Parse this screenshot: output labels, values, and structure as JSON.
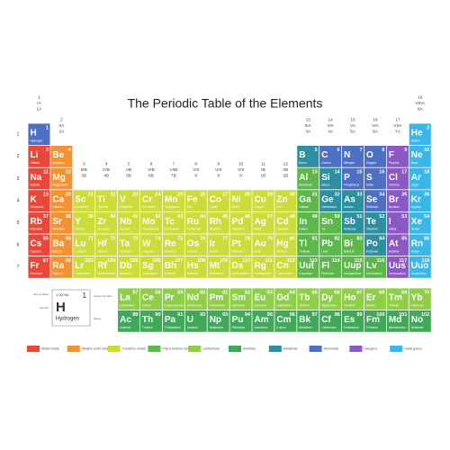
{
  "title": "The Periodic Table of the Elements",
  "periods": [
    "1",
    "2",
    "3",
    "4",
    "5",
    "6",
    "7"
  ],
  "groups": [
    [
      "1",
      "IA",
      "1A"
    ],
    [
      "2",
      "IIA",
      "2A"
    ],
    [
      "3",
      "IIIB",
      "3B"
    ],
    [
      "4",
      "IVB",
      "4B"
    ],
    [
      "5",
      "VB",
      "5B"
    ],
    [
      "6",
      "VIB",
      "6B"
    ],
    [
      "7",
      "VIIB",
      "7B"
    ],
    [
      "8",
      "VIII",
      "8"
    ],
    [
      "9",
      "VIII",
      "8"
    ],
    [
      "10",
      "VIII",
      "8"
    ],
    [
      "11",
      "IB",
      "1B"
    ],
    [
      "12",
      "IIB",
      "2B"
    ],
    [
      "13",
      "IIIA",
      "3A"
    ],
    [
      "14",
      "IVA",
      "4A"
    ],
    [
      "15",
      "VA",
      "5A"
    ],
    [
      "16",
      "VIA",
      "6A"
    ],
    [
      "17",
      "VIIA",
      "7A"
    ],
    [
      "18",
      "VIIIA",
      "8A"
    ]
  ],
  "legend": [
    {
      "name": "Alkali metals",
      "color": "#e8473a"
    },
    {
      "name": "Alkaline earth metals",
      "color": "#f39230"
    },
    {
      "name": "Transition metals",
      "color": "#cddc3a"
    },
    {
      "name": "Post-transition metals",
      "color": "#5cb84a"
    },
    {
      "name": "Lanthanides",
      "color": "#8fcf48"
    },
    {
      "name": "Actinides",
      "color": "#41a85a"
    },
    {
      "name": "Metalloids",
      "color": "#2d8fa0"
    },
    {
      "name": "Nonmetals",
      "color": "#4d70c4"
    },
    {
      "name": "Halogens",
      "color": "#8b58c6"
    },
    {
      "name": "Noble gases",
      "color": "#3ab6e8"
    }
  ],
  "key": {
    "mass": "1.00794",
    "number": 1,
    "symbol": "H",
    "name": "Hydrogen",
    "labels": [
      "Atomic Mass",
      "Atomic Number",
      "Symbol",
      "Name"
    ]
  },
  "elements": [
    [
      1,
      "H",
      "Hydrogen"
    ],
    [
      2,
      "He",
      "Helium"
    ],
    [
      3,
      "Li",
      "Lithium"
    ],
    [
      4,
      "Be",
      "Beryllium"
    ],
    [
      5,
      "B",
      "Boron"
    ],
    [
      6,
      "C",
      "Carbon"
    ],
    [
      7,
      "N",
      "Nitrogen"
    ],
    [
      8,
      "O",
      "Oxygen"
    ],
    [
      9,
      "F",
      "Fluorine"
    ],
    [
      10,
      "Ne",
      "Neon"
    ],
    [
      11,
      "Na",
      "Sodium"
    ],
    [
      12,
      "Mg",
      "Magnesium"
    ],
    [
      13,
      "Al",
      "Aluminium"
    ],
    [
      14,
      "Si",
      "Silicon"
    ],
    [
      15,
      "P",
      "Phosphorus"
    ],
    [
      16,
      "S",
      "Sulfur"
    ],
    [
      17,
      "Cl",
      "Chlorine"
    ],
    [
      18,
      "Ar",
      "Argon"
    ],
    [
      19,
      "K",
      "Potassium"
    ],
    [
      20,
      "Ca",
      "Calcium"
    ],
    [
      21,
      "Sc",
      "Scandium"
    ],
    [
      22,
      "Ti",
      "Titanium"
    ],
    [
      23,
      "V",
      "Vanadium"
    ],
    [
      24,
      "Cr",
      "Chromium"
    ],
    [
      25,
      "Mn",
      "Manganese"
    ],
    [
      26,
      "Fe",
      "Iron"
    ],
    [
      27,
      "Co",
      "Cobalt"
    ],
    [
      28,
      "Ni",
      "Nickel"
    ],
    [
      29,
      "Cu",
      "Copper"
    ],
    [
      30,
      "Zn",
      "Zinc"
    ],
    [
      31,
      "Ga",
      "Gallium"
    ],
    [
      32,
      "Ge",
      "Germanium"
    ],
    [
      33,
      "As",
      "Arsenic"
    ],
    [
      34,
      "Se",
      "Selenium"
    ],
    [
      35,
      "Br",
      "Bromine"
    ],
    [
      36,
      "Kr",
      "Krypton"
    ],
    [
      37,
      "Rb",
      "Rubidium"
    ],
    [
      38,
      "Sr",
      "Strontium"
    ],
    [
      39,
      "Y",
      "Yttrium"
    ],
    [
      40,
      "Zr",
      "Zirconium"
    ],
    [
      41,
      "Nb",
      "Niobium"
    ],
    [
      42,
      "Mo",
      "Molybdenum"
    ],
    [
      43,
      "Tc",
      "Technetium"
    ],
    [
      44,
      "Ru",
      "Ruthenium"
    ],
    [
      45,
      "Rh",
      "Rhodium"
    ],
    [
      46,
      "Pd",
      "Palladium"
    ],
    [
      47,
      "Ag",
      "Silver"
    ],
    [
      48,
      "Cd",
      "Cadmium"
    ],
    [
      49,
      "In",
      "Indium"
    ],
    [
      50,
      "Sn",
      "Tin"
    ],
    [
      51,
      "Sb",
      "Antimony"
    ],
    [
      52,
      "Te",
      "Tellurium"
    ],
    [
      53,
      "I",
      "Iodine"
    ],
    [
      54,
      "Xe",
      "Xenon"
    ],
    [
      55,
      "Cs",
      "Caesium"
    ],
    [
      56,
      "Ba",
      "Barium"
    ],
    [
      57,
      "La",
      "Lanthanum"
    ],
    [
      58,
      "Ce",
      "Cerium"
    ],
    [
      59,
      "Pr",
      "Praseodymium"
    ],
    [
      60,
      "Nd",
      "Neodymium"
    ],
    [
      61,
      "Pm",
      "Promethium"
    ],
    [
      62,
      "Sm",
      "Samarium"
    ],
    [
      63,
      "Eu",
      "Europium"
    ],
    [
      64,
      "Gd",
      "Gadolinium"
    ],
    [
      65,
      "Tb",
      "Terbium"
    ],
    [
      66,
      "Dy",
      "Dysprosium"
    ],
    [
      67,
      "Ho",
      "Holmium"
    ],
    [
      68,
      "Er",
      "Erbium"
    ],
    [
      69,
      "Tm",
      "Thulium"
    ],
    [
      70,
      "Yb",
      "Ytterbium"
    ],
    [
      71,
      "Lu",
      "Lutetium"
    ],
    [
      72,
      "Hf",
      "Hafnium"
    ],
    [
      73,
      "Ta",
      "Tantalum"
    ],
    [
      74,
      "W",
      "Tungsten"
    ],
    [
      75,
      "Re",
      "Rhenium"
    ],
    [
      76,
      "Os",
      "Osmium"
    ],
    [
      77,
      "Ir",
      "Iridium"
    ],
    [
      78,
      "Pt",
      "Platinum"
    ],
    [
      79,
      "Au",
      "Gold"
    ],
    [
      80,
      "Hg",
      "Mercury"
    ],
    [
      81,
      "Tl",
      "Thallium"
    ],
    [
      82,
      "Pb",
      "Lead"
    ],
    [
      83,
      "Bi",
      "Bismuth"
    ],
    [
      84,
      "Po",
      "Polonium"
    ],
    [
      85,
      "At",
      "Astatine"
    ],
    [
      86,
      "Rn",
      "Radon"
    ],
    [
      87,
      "Fr",
      "Francium"
    ],
    [
      88,
      "Ra",
      "Radium"
    ],
    [
      89,
      "Ac",
      "Actinium"
    ],
    [
      90,
      "Th",
      "Thorium"
    ],
    [
      91,
      "Pa",
      "Protactinium"
    ],
    [
      92,
      "U",
      "Uranium"
    ],
    [
      93,
      "Np",
      "Neptunium"
    ],
    [
      94,
      "Pu",
      "Plutonium"
    ],
    [
      95,
      "Am",
      "Americium"
    ],
    [
      96,
      "Cm",
      "Curium"
    ],
    [
      97,
      "Bk",
      "Berkelium"
    ],
    [
      98,
      "Cf",
      "Californium"
    ],
    [
      99,
      "Es",
      "Einsteinium"
    ],
    [
      100,
      "Fm",
      "Fermium"
    ],
    [
      101,
      "Md",
      "Mendelevium"
    ],
    [
      102,
      "No",
      "Nobelium"
    ],
    [
      103,
      "Lr",
      "Lawrencium"
    ],
    [
      104,
      "Rf",
      "Rutherfordium"
    ],
    [
      105,
      "Db",
      "Dubnium"
    ],
    [
      106,
      "Sg",
      "Seaborgium"
    ],
    [
      107,
      "Bh",
      "Bohrium"
    ],
    [
      108,
      "Hs",
      "Hassium"
    ],
    [
      109,
      "Mt",
      "Meitnerium"
    ],
    [
      110,
      "Ds",
      "Darmstadtium"
    ],
    [
      111,
      "Rg",
      "Roentgenium"
    ],
    [
      112,
      "Cn",
      "Copernicium"
    ],
    [
      113,
      "Uut",
      "Ununtrium"
    ],
    [
      114,
      "Fl",
      "Flerovium"
    ],
    [
      115,
      "Uup",
      "Ununpentium"
    ],
    [
      116,
      "Lv",
      "Livermorium"
    ],
    [
      117,
      "Uus",
      "Ununseptium"
    ],
    [
      118,
      "Uuo",
      "Ununoctium"
    ]
  ]
}
